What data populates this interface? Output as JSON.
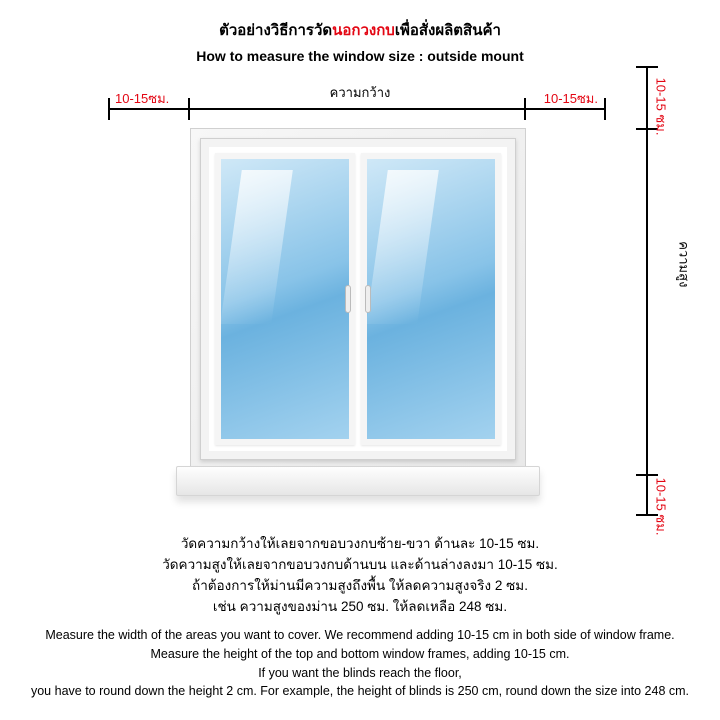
{
  "colors": {
    "accent_red": "#e30613",
    "text": "#000000",
    "bg": "#ffffff",
    "glass_top": "#cfe8f7",
    "glass_mid": "#88c3e8",
    "glass_low": "#6bb2df"
  },
  "title": {
    "th_prefix": "ตัวอย่างวิธีการวัด",
    "th_red": "นอกวงกบ",
    "th_suffix": "เพื่อสั่งผลิตสินค้า",
    "en": "How to measure the window size : outside mount"
  },
  "labels": {
    "width_th": "ความกว้าง",
    "height_th": "ความสูง",
    "ext_horiz": "10-15ซม.",
    "ext_vert": "10-15 ซม."
  },
  "instructions_th": [
    "วัดความกว้างให้เลยจากขอบวงกบซ้าย-ขวา ด้านละ 10-15 ซม.",
    "วัดความสูงให้เลยจากขอบวงกบด้านบน และด้านล่างลงมา 10-15 ซม.",
    "ถ้าต้องการให้ม่านมีความสูงถึงพื้น ให้ลดความสูงจริง 2 ซม.",
    "เช่น ความสูงของม่าน 250 ซม. ให้ลดเหลือ 248 ซม."
  ],
  "instructions_en": [
    "Measure the width of the areas you want to cover. We recommend adding 10-15 cm in both side of window frame.",
    "Measure the height of the top and bottom window frames, adding 10-15 cm.",
    "If you want the blinds reach the floor,",
    "you have to round down the height 2 cm. For example, the height of blinds is 250 cm, round down the size into 248 cm."
  ]
}
